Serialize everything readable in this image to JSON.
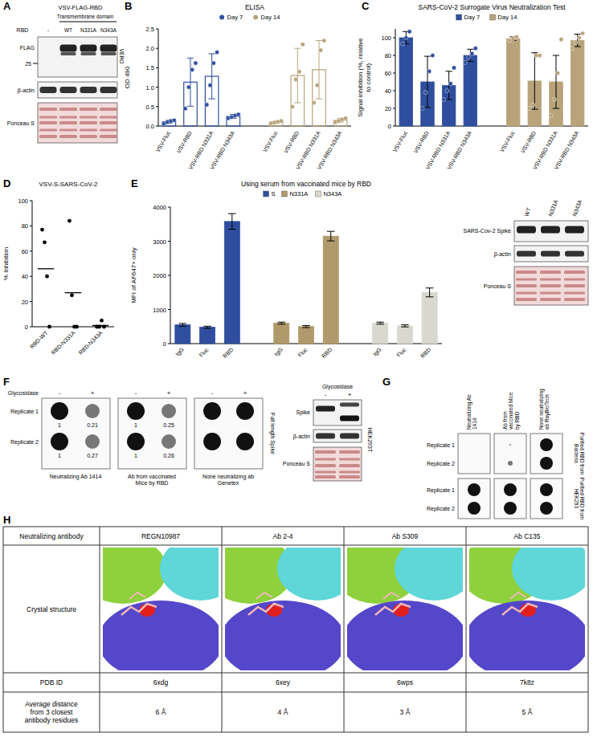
{
  "panel_labels": [
    "A",
    "B",
    "C",
    "D",
    "E",
    "F",
    "G",
    "H"
  ],
  "chart_data": [
    {
      "type": "bar",
      "title": "ELISA",
      "y_label": "OD 490",
      "categories": [
        "VSV-Fluc",
        "VSV-RBD",
        "VSV-RBD N331A",
        "VSV-RBD N343A"
      ],
      "series": [
        {
          "name": "Day 7",
          "color": "#2f4f9e",
          "values": [
            0.11,
            1.13,
            1.28,
            0.25
          ],
          "errors": [
            0.04,
            0.62,
            0.58,
            0.05
          ],
          "points": [
            [
              0.06,
              0.1,
              0.13,
              0.15
            ],
            [
              0.45,
              1.0,
              1.45,
              1.62
            ],
            [
              0.55,
              1.05,
              1.62,
              1.9
            ],
            [
              0.2,
              0.23,
              0.27,
              0.3
            ]
          ]
        },
        {
          "name": "Day 14",
          "color": "#b8a37a",
          "values": [
            0.1,
            1.3,
            1.45,
            0.15
          ],
          "errors": [
            0.03,
            0.7,
            0.75,
            0.05
          ],
          "points": [
            [
              0.07,
              0.09,
              0.11,
              0.13
            ],
            [
              0.5,
              1.2,
              1.4,
              2.1
            ],
            [
              0.6,
              1.05,
              1.95,
              2.2
            ],
            [
              0.1,
              0.13,
              0.17,
              0.2
            ]
          ]
        }
      ],
      "ylim": [
        0,
        2.5
      ],
      "yticks": [
        {
          "value": 0,
          "label": "0.0"
        },
        0.5,
        {
          "value": 1,
          "label": "1.0"
        },
        1.5,
        {
          "value": 2,
          "label": "2.0"
        },
        2.5
      ],
      "legend": "top"
    },
    {
      "type": "bar",
      "title": "SARS-CoV-2 Surrogate Virus Neutralization Test",
      "y_label": "Signal inhibition (%, relative to control)",
      "categories": [
        "VSV-Fluc",
        "VSV-RBD",
        "VSV-RBD N331A",
        "VSV-RBD N343A"
      ],
      "series": [
        {
          "name": "Day 7",
          "color": "#2f4f9e",
          "values": [
            100,
            50,
            46,
            80
          ],
          "errors": [
            7,
            29,
            16,
            7
          ],
          "points": [
            [
              93,
              100,
              107
            ],
            [
              20,
              38,
              62,
              80
            ],
            [
              30,
              40,
              48,
              66
            ],
            [
              72,
              78,
              82,
              88
            ]
          ]
        },
        {
          "name": "Day 14",
          "color": "#b8a37a",
          "values": [
            99,
            51,
            50,
            97
          ],
          "errors": [
            2,
            32,
            30,
            7
          ],
          "points": [
            [
              97,
              99,
              101
            ],
            [
              20,
              24,
              80,
              80
            ],
            [
              12,
              30,
              60,
              98
            ],
            [
              88,
              95,
              100,
              105
            ]
          ]
        }
      ],
      "ylim": [
        0,
        110
      ],
      "yticks": [
        0,
        20,
        40,
        60,
        80,
        100
      ],
      "legend": "top"
    },
    {
      "type": "dot",
      "title": "VSV-S-SARS-CoV-2",
      "y_label": "% Inhibition",
      "categories": [
        "RBD-WT",
        "RBD-N331A",
        "RBD-N343A"
      ],
      "values": [
        46,
        27,
        1
      ],
      "points": [
        [
          77,
          67,
          40,
          0
        ],
        [
          84,
          25,
          0,
          0
        ],
        [
          0,
          0,
          5,
          0
        ]
      ],
      "color": "#000000",
      "ylim": [
        0,
        100
      ],
      "yticks": [
        0,
        20,
        40,
        60,
        80,
        100
      ]
    },
    {
      "type": "bar",
      "title": "Using serum from vaccinated mice by RBD",
      "y_label": "MFI of AF647+ only",
      "categories": [
        "IgG",
        "Fluc",
        "RBD"
      ],
      "series": [
        {
          "name": "S",
          "color": "#2f4f9e",
          "values": [
            550,
            480,
            3580
          ],
          "errors": [
            40,
            30,
            230
          ]
        },
        {
          "name": "N331A",
          "color": "#b09a6b",
          "values": [
            600,
            500,
            3150
          ],
          "errors": [
            30,
            30,
            140
          ]
        },
        {
          "name": "N343A",
          "color": "#d8d8cf",
          "values": [
            600,
            520,
            1500
          ],
          "errors": [
            30,
            30,
            130
          ]
        }
      ],
      "ylim": [
        0,
        4000
      ],
      "yticks": [
        0,
        1000,
        2000,
        3000,
        4000
      ],
      "legend": "top"
    }
  ],
  "panel_a": {
    "construct": "VSV-FLAG-RBD",
    "subtitle": "Transmembrane domain",
    "lane_header": "RBD",
    "lanes": [
      "-",
      "WT",
      "N331A",
      "N343A"
    ],
    "rows": [
      "FLAG",
      "β-actin",
      "Ponceau S"
    ],
    "marker": 25,
    "cell_line": "VERO"
  },
  "panel_e_blot": {
    "lanes": [
      "WT",
      "N331A",
      "N343A"
    ],
    "rows": [
      "SARS-Cov-2 Spike",
      "β-actin",
      "Ponceau S"
    ]
  },
  "panel_f": {
    "treatment": "Glycosidase",
    "conditions": [
      "-",
      "+"
    ],
    "replicates": [
      "Replicate 1",
      "Replicate 2"
    ],
    "blots": [
      {
        "antibody": "Neutralizing Ab 1414",
        "quant": [
          [
            1,
            0.21
          ],
          [
            1,
            0.27
          ]
        ]
      },
      {
        "antibody": "Ab from vaccinated Mice by RBD",
        "quant": [
          [
            1,
            0.25
          ],
          [
            1,
            0.26
          ]
        ]
      },
      {
        "antibody": "None neutralizing ab Genetex"
      }
    ],
    "sample": "Full length Spike",
    "western": {
      "treatment": "Glycosidase",
      "conditions": [
        "-",
        "+"
      ],
      "rows": [
        "Spike",
        "β-actin",
        "Ponceau S"
      ],
      "cell_line": "HEK293T"
    }
  },
  "panel_g": {
    "antibodies": [
      "Neutralizing Ab 1414",
      "Ab from vaccinated Mice by RBD",
      "None neutralizing ab RayBioTech"
    ],
    "replicates": [
      "Replicate 1",
      "Replicate 2"
    ],
    "samples": [
      "Purified RBD from Bacteria",
      "Purified RBD from HEK293"
    ]
  },
  "panel_h": {
    "header": [
      "Neutralizing antibody",
      "REGN10987",
      "Ab 2-4",
      "Ab S309",
      "Ab C135"
    ],
    "structure_label": "Crystal structure",
    "rows": [
      [
        "PDB ID",
        "6xdg",
        "6xey",
        "6wps",
        "7k8z"
      ],
      [
        "Average distance from 3 closest antibody residues",
        "6 Å",
        "4 Å",
        "3 Å",
        "5 Å"
      ]
    ]
  }
}
